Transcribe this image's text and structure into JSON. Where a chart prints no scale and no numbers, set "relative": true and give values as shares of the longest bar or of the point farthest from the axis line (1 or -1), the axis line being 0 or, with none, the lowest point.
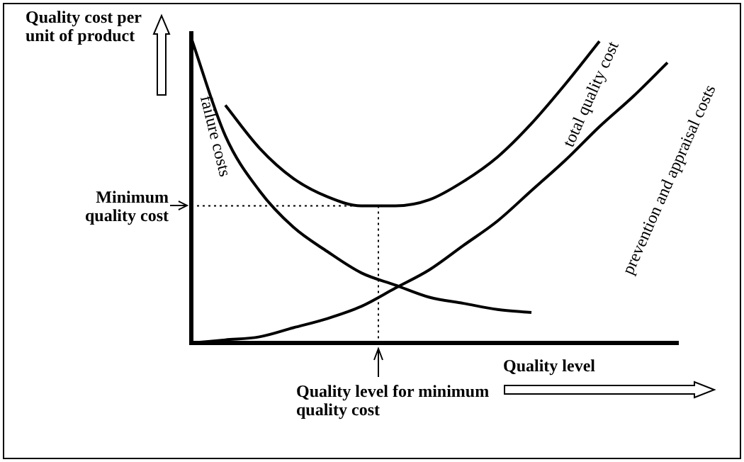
{
  "chart_data": {
    "type": "line",
    "relative": true,
    "xlabel": "Quality level",
    "ylabel": "Quality cost per unit of product",
    "legend": false,
    "grid": false,
    "marker": "none",
    "line_style": "solid",
    "categories": [
      null,
      null,
      null,
      null,
      null,
      null,
      null,
      null,
      null,
      null,
      null,
      null,
      null,
      null,
      null
    ],
    "series": [
      {
        "name": "failure costs",
        "color": "#000000",
        "values": [
          1,
          0.68,
          0.5,
          0.38,
          0.3,
          0.23,
          0.19,
          0.15,
          0.13,
          0.11,
          0.1,
          null,
          null,
          null,
          null
        ]
      },
      {
        "name": "total quality cost",
        "color": "#000000",
        "values": [
          null,
          0.78,
          0.64,
          0.54,
          0.48,
          0.45,
          0.45,
          0.47,
          0.53,
          0.61,
          0.72,
          0.85,
          0.99,
          null,
          null
        ]
      },
      {
        "name": "prevention and appraisal costs",
        "color": "#000000",
        "values": [
          0,
          0.01,
          0.02,
          0.05,
          0.08,
          0.12,
          0.18,
          0.24,
          0.32,
          0.4,
          0.5,
          0.6,
          0.71,
          0.81,
          0.92
        ]
      }
    ],
    "ref_lines": [
      {
        "axis": "y",
        "value": 0.45,
        "label": "Minimum quality cost",
        "line_style": "dotted"
      }
    ],
    "annotations": [
      "Quality level for minimum quality cost"
    ]
  }
}
